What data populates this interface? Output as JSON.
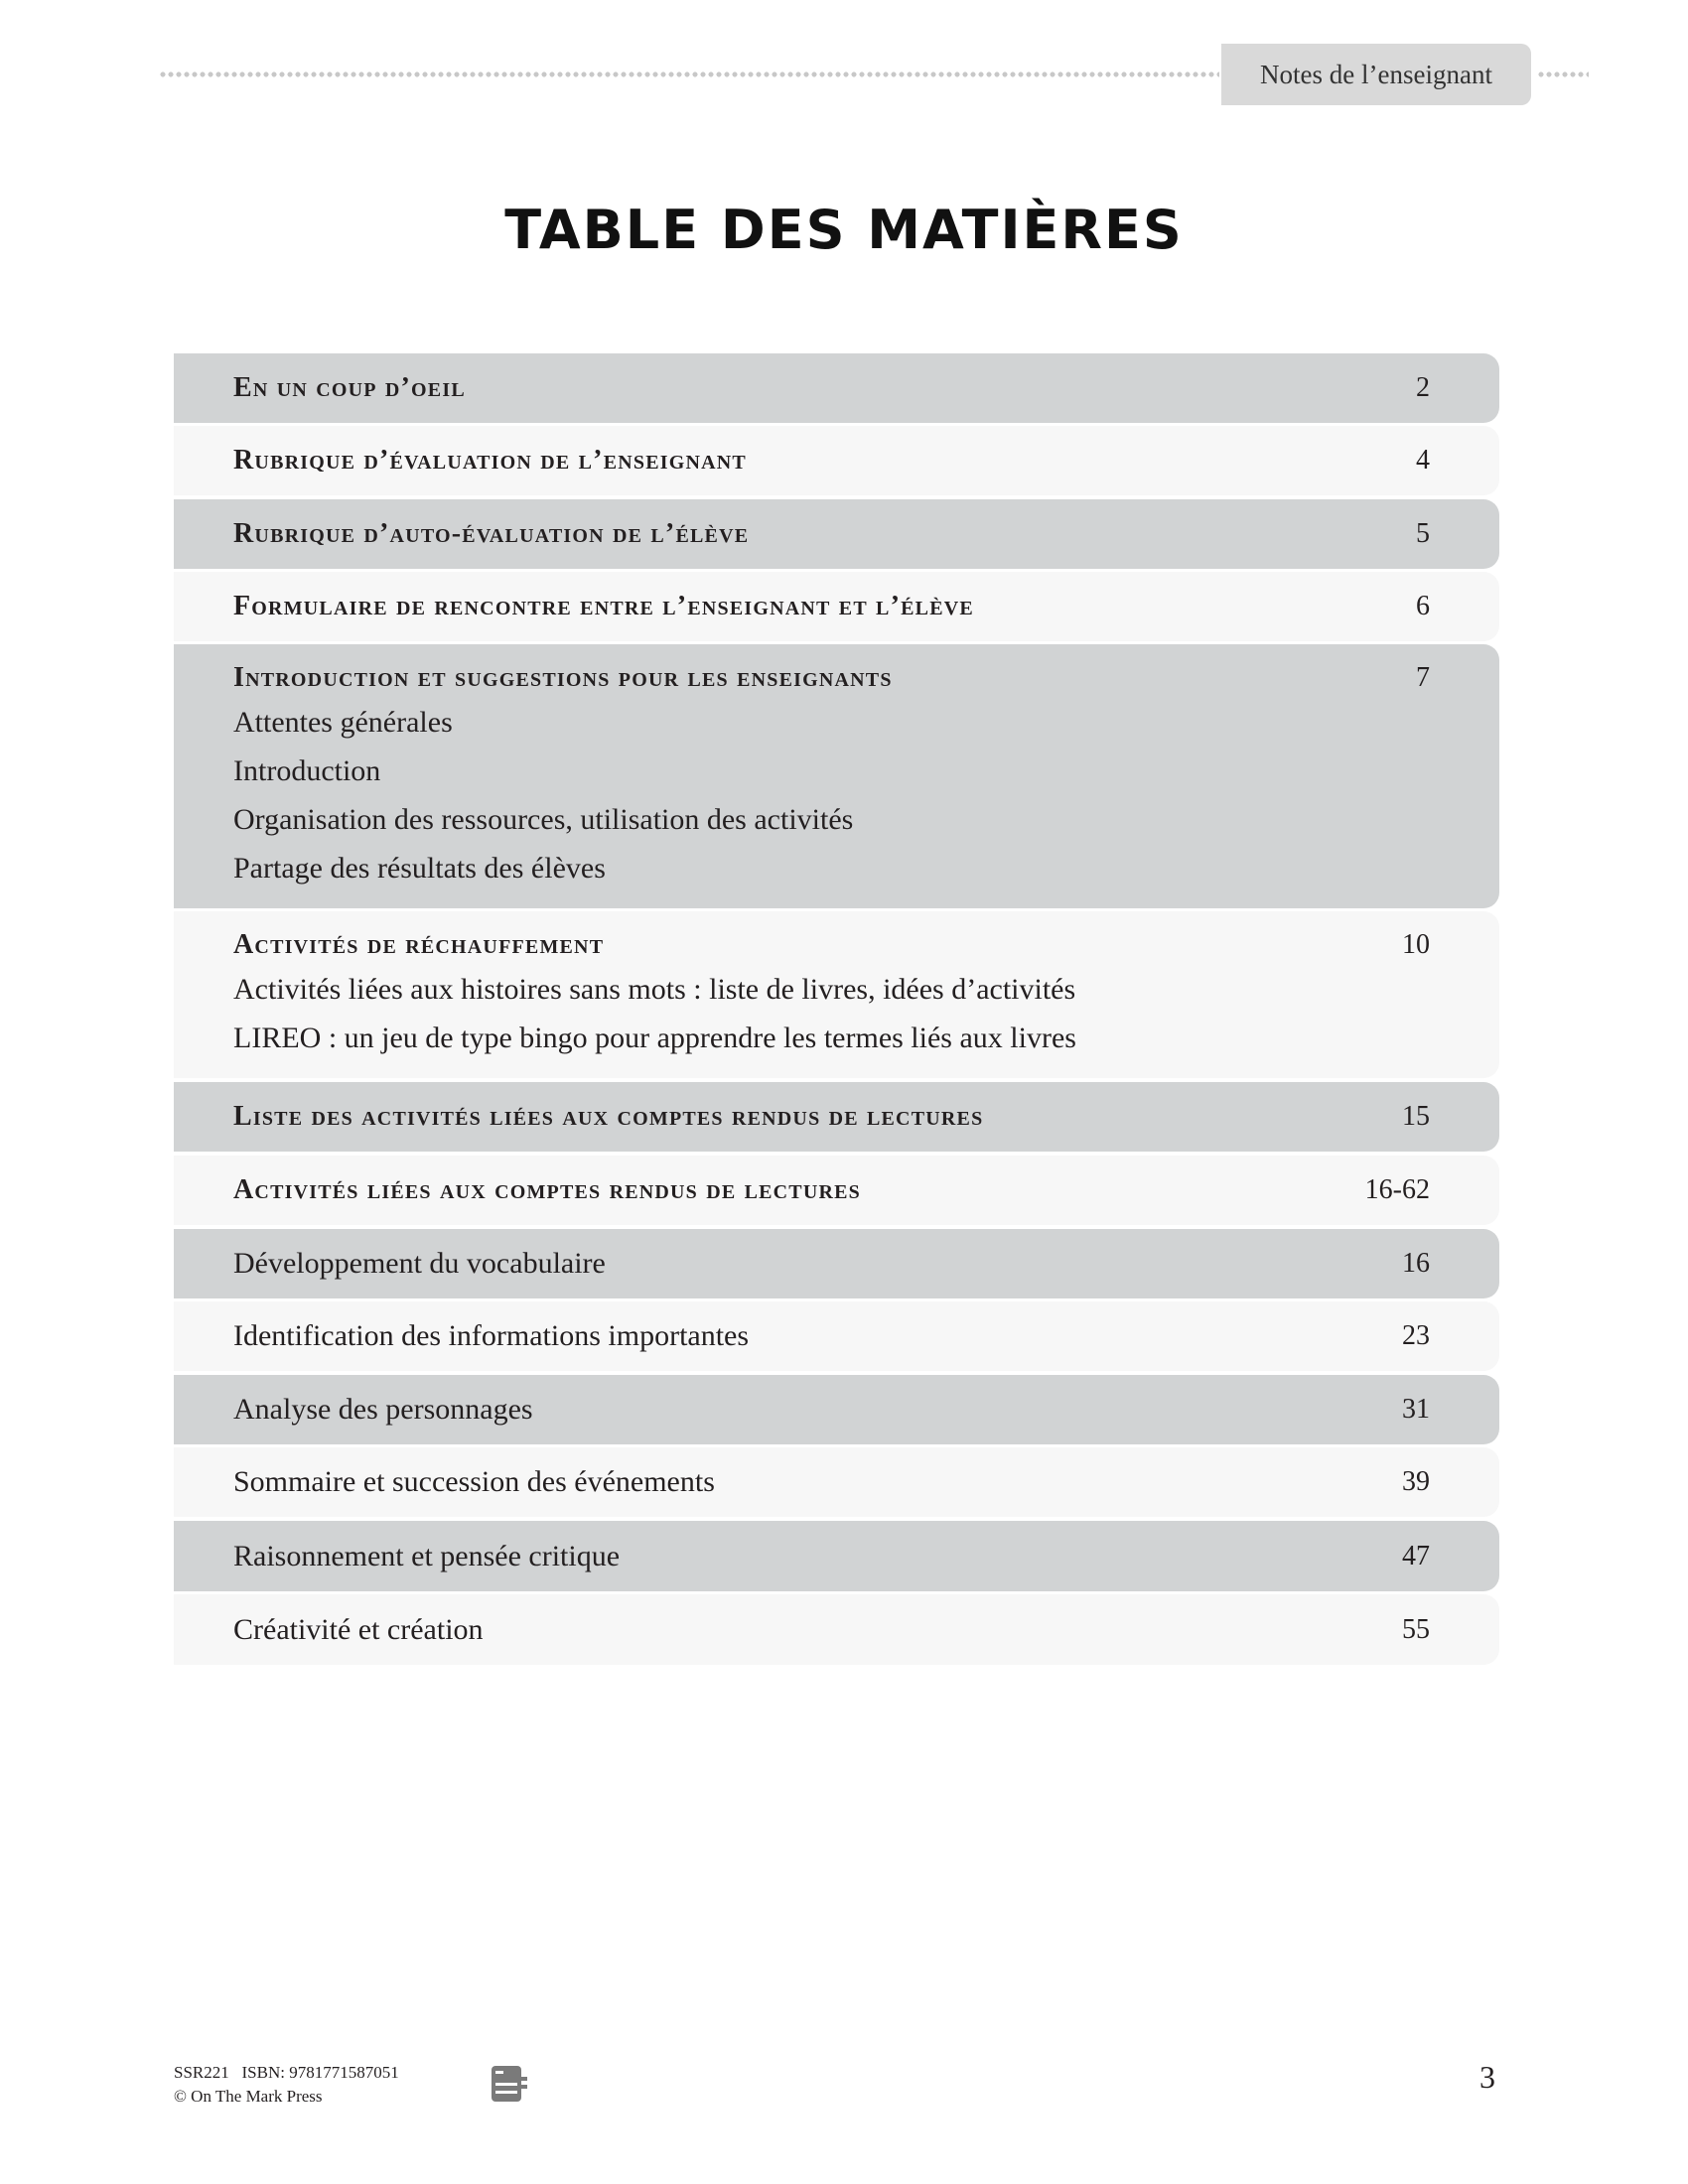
{
  "header": {
    "tab_label": "Notes de l’enseignant"
  },
  "title": "TABLE DES MATIÈRES",
  "toc": [
    {
      "label": "En un coup d’oeil",
      "page": "2",
      "style": "head"
    },
    {
      "label": "Rubrique d’évaluation de l’enseignant",
      "page": "4",
      "style": "head"
    },
    {
      "label": "Rubrique d’auto-évaluation de l’élève",
      "page": "5",
      "style": "head"
    },
    {
      "label": "Formulaire de rencontre entre l’enseignant et l’élève",
      "page": "6",
      "style": "head"
    },
    {
      "label": "Introduction et suggestions pour les enseignants",
      "page": "7",
      "style": "head",
      "subitems": [
        "Attentes générales",
        "Introduction",
        "Organisation des ressources, utilisation des activités",
        "Partage des résultats des élèves"
      ]
    },
    {
      "label": "Activités de réchauffement",
      "page": "10",
      "style": "head",
      "subitems": [
        "Activités liées aux histoires sans mots : liste de livres, idées d’activités",
        "LIREO : un jeu de type bingo pour apprendre les termes liés aux livres"
      ]
    },
    {
      "label": "Liste des activités liées aux comptes rendus de lectures",
      "page": "15",
      "style": "head"
    },
    {
      "label": "Activités liées aux comptes rendus de lectures",
      "page": "16-62",
      "style": "head"
    },
    {
      "label": "Développement du vocabulaire",
      "page": "16",
      "style": "plain"
    },
    {
      "label": "Identification des informations importantes",
      "page": "23",
      "style": "plain"
    },
    {
      "label": "Analyse des personnages",
      "page": "31",
      "style": "plain"
    },
    {
      "label": "Sommaire et succession des événements",
      "page": "39",
      "style": "plain"
    },
    {
      "label": "Raisonnement et pensée critique",
      "page": "47",
      "style": "plain"
    },
    {
      "label": "Créativité et création",
      "page": "55",
      "style": "plain"
    }
  ],
  "footer": {
    "code": "SSR221",
    "isbn": "ISBN: 9781771587051",
    "copyright": "© On The Mark Press",
    "page_number": "3",
    "icon": "teacher-notes-icon"
  },
  "colors": {
    "row_dark": "#d1d3d4",
    "row_light": "#f7f7f7",
    "tab": "#d9d9d9"
  }
}
